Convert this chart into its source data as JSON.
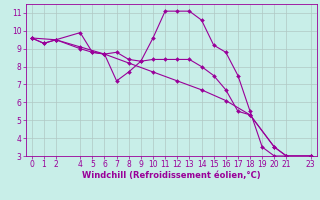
{
  "bg_color": "#c8eee8",
  "line_color": "#990099",
  "grid_color": "#b0c8c4",
  "line_series": [
    {
      "x": [
        0,
        1,
        2,
        4,
        5,
        6,
        7,
        8,
        9,
        10,
        11,
        12,
        13,
        14,
        15,
        16,
        17,
        18,
        19,
        20,
        21,
        23
      ],
      "y": [
        9.6,
        9.3,
        9.5,
        9.9,
        8.8,
        8.7,
        8.8,
        8.4,
        8.3,
        9.6,
        11.1,
        11.1,
        11.1,
        10.6,
        9.2,
        8.8,
        7.5,
        5.5,
        3.5,
        3.0,
        3.0,
        3.0
      ]
    },
    {
      "x": [
        0,
        1,
        2,
        4,
        5,
        6,
        7,
        8,
        9,
        10,
        11,
        12,
        13,
        14,
        15,
        16,
        17,
        18,
        20,
        21,
        23
      ],
      "y": [
        9.6,
        9.3,
        9.5,
        9.0,
        8.8,
        8.7,
        7.2,
        7.7,
        8.3,
        8.4,
        8.4,
        8.4,
        8.4,
        8.0,
        7.5,
        6.7,
        5.5,
        5.3,
        3.5,
        3.0,
        3.0
      ]
    },
    {
      "x": [
        0,
        2,
        4,
        6,
        8,
        10,
        12,
        14,
        16,
        18,
        20,
        21,
        23
      ],
      "y": [
        9.6,
        9.5,
        9.1,
        8.7,
        8.2,
        7.7,
        7.2,
        6.7,
        6.1,
        5.3,
        3.5,
        3.0,
        3.0
      ]
    }
  ],
  "xlabel": "Windchill (Refroidissement éolien,°C)",
  "xlim": [
    -0.5,
    23.5
  ],
  "ylim": [
    3,
    11.5
  ],
  "xticks": [
    0,
    1,
    2,
    4,
    5,
    6,
    7,
    8,
    9,
    10,
    11,
    12,
    13,
    14,
    15,
    16,
    17,
    18,
    19,
    20,
    21,
    23
  ],
  "yticks": [
    3,
    4,
    5,
    6,
    7,
    8,
    9,
    10,
    11
  ],
  "axis_fontsize": 5.5,
  "label_fontsize": 6.0
}
